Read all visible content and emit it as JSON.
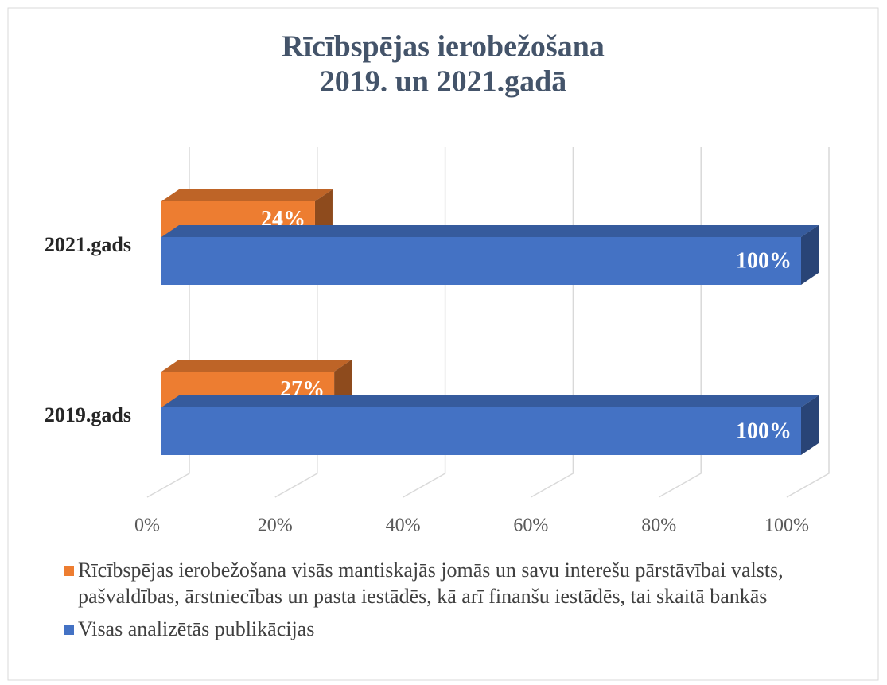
{
  "chart_data": {
    "type": "bar3d_horizontal",
    "title": [
      "Rīcībspējas ierobežošana",
      "2019. un 2021.gadā"
    ],
    "categories": [
      "2021.gads",
      "2019.gads"
    ],
    "series": [
      {
        "name": "Rīcībspējas ierobežošana visās mantiskajās jomās un savu interešu pārstāvībai valsts, pašvaldības, ārstniecības un pasta iestādēs, kā arī finanšu iestādēs, tai skaitā bankās",
        "color": "#ed7d31",
        "values": [
          24,
          27
        ],
        "value_labels": [
          "24%",
          "27%"
        ]
      },
      {
        "name": "Visas analizētās publikācijas",
        "color": "#4472c4",
        "values": [
          100,
          100
        ],
        "value_labels": [
          "100%",
          "100%"
        ]
      }
    ],
    "xlim": [
      0,
      100
    ],
    "xticks": [
      {
        "value": 0,
        "label": "0%"
      },
      {
        "value": 20,
        "label": "20%"
      },
      {
        "value": 40,
        "label": "40%"
      },
      {
        "value": 60,
        "label": "60%"
      },
      {
        "value": 80,
        "label": "80%"
      },
      {
        "value": 100,
        "label": "100%"
      }
    ],
    "grid": true
  }
}
